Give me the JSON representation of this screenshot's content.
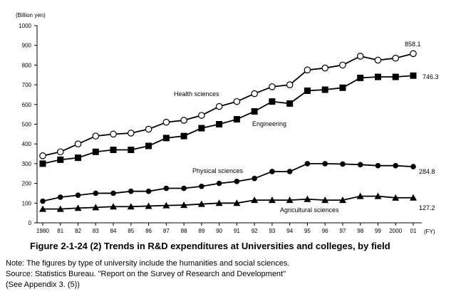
{
  "figure": {
    "caption": "Figure 2-1-24 (2)  Trends in R&D expenditures at Universities and colleges, by field",
    "notes": [
      "Note: The figures by type of university include the humanities and social sciences.",
      "Source: Statistics Bureau. \"Report on the Survey of Research and Development\"",
      "(See Appendix 3. (5))"
    ]
  },
  "chart_data": {
    "type": "line",
    "ylabel": "(Billion yen)",
    "xlabel": "(FY)",
    "ylim": [
      0,
      1000
    ],
    "yticks": [
      0,
      100,
      200,
      300,
      400,
      500,
      600,
      700,
      800,
      900,
      1000
    ],
    "categories": [
      "1980",
      "81",
      "82",
      "83",
      "84",
      "85",
      "86",
      "87",
      "88",
      "89",
      "90",
      "91",
      "92",
      "93",
      "94",
      "95",
      "96",
      "97",
      "98",
      "99",
      "2000",
      "01"
    ],
    "grid": false,
    "series": [
      {
        "name": "Health sciences",
        "marker": "circle-open",
        "end_label": "858.1",
        "values": [
          340,
          360,
          400,
          440,
          450,
          455,
          475,
          510,
          520,
          545,
          590,
          615,
          655,
          690,
          700,
          775,
          785,
          800,
          845,
          825,
          835,
          858.1
        ]
      },
      {
        "name": "Engineering",
        "marker": "square-filled",
        "end_label": "746.3",
        "values": [
          300,
          320,
          330,
          360,
          370,
          370,
          390,
          430,
          440,
          480,
          500,
          525,
          565,
          615,
          605,
          670,
          675,
          685,
          735,
          740,
          740,
          746.3
        ]
      },
      {
        "name": "Physical sciences",
        "marker": "circle-filled",
        "end_label": "284.8",
        "values": [
          110,
          130,
          140,
          150,
          150,
          160,
          160,
          175,
          175,
          185,
          200,
          210,
          225,
          260,
          260,
          300,
          300,
          298,
          295,
          290,
          290,
          284.8
        ]
      },
      {
        "name": "Agricultural sciences",
        "marker": "triangle-filled",
        "end_label": "127.2",
        "values": [
          70,
          70,
          75,
          78,
          82,
          82,
          85,
          88,
          90,
          95,
          100,
          100,
          115,
          115,
          115,
          120,
          115,
          115,
          135,
          135,
          127,
          127.2
        ]
      }
    ]
  }
}
